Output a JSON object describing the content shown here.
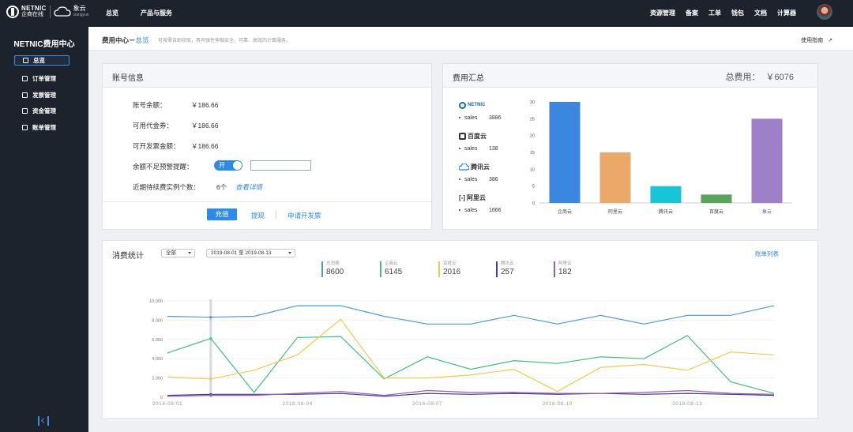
{
  "topbar": {
    "logo_line1": "NETNIC",
    "logo_line2": "企商在线",
    "cloud_text": "象云",
    "cloud_sub": "xiangyun",
    "nav": [
      "总览",
      "产品与服务"
    ],
    "right_nav": [
      "资源管理",
      "备案",
      "工单",
      "钱包",
      "文档",
      "计算器"
    ]
  },
  "sidebar": {
    "title": "NETNIC费用中心",
    "items": [
      {
        "label": "总览",
        "icon": "grid-icon"
      },
      {
        "label": "订单管理",
        "icon": "order-icon"
      },
      {
        "label": "发票管理",
        "icon": "invoice-icon"
      },
      {
        "label": "资金管理",
        "icon": "funds-icon"
      },
      {
        "label": "账单管理",
        "icon": "bill-icon"
      }
    ]
  },
  "header": {
    "breadcrumb_root": "费用中心－",
    "breadcrumb_current": "总览",
    "description": "可按需自助获取，具有弹性伸缩安全、可靠、高效的计算服务。",
    "guide": "使用指南"
  },
  "account": {
    "title": "账号信息",
    "rows": [
      {
        "label": "账号余额：",
        "value": "￥186.66"
      },
      {
        "label": "可用代金券：",
        "value": "￥186.66"
      },
      {
        "label": "可开发票金额：",
        "value": "￥186.66"
      }
    ],
    "alert_label": "余额不足预警提醒：",
    "toggle_label": "开",
    "renew_label": "近期待续费实例个数：",
    "renew_count": "6个",
    "renew_link": "查看详情",
    "recharge": "充值",
    "withdraw": "提现",
    "apply_invoice": "申请开发票"
  },
  "summary": {
    "title": "费用汇总",
    "total_label": "总费用：",
    "total_value": "￥6076",
    "vendors": [
      {
        "name": "NETNIC",
        "sales_label": "sales",
        "sales": "3886"
      },
      {
        "name": "百度云",
        "sales_label": "sales",
        "sales": "138"
      },
      {
        "name": "腾讯云",
        "sales_label": "sales",
        "sales": "386"
      },
      {
        "name": "阿里云",
        "sales_label": "sales",
        "sales": "1666"
      }
    ]
  },
  "stats": {
    "title": "消费统计",
    "filter": "全部",
    "date_range": "2019-08-01 至 2019-08-13",
    "bill_list": "账单列表",
    "legend": [
      {
        "name": "总消费",
        "value": "8600",
        "color": "#4a9bd8"
      },
      {
        "name": "企商云",
        "value": "6145",
        "color": "#3fbf7f"
      },
      {
        "name": "百度云",
        "value": "2016",
        "color": "#f2c94c"
      },
      {
        "name": "腾讯云",
        "value": "257",
        "color": "#3d3d8f"
      },
      {
        "name": "阿里云",
        "value": "182",
        "color": "#9b59b6"
      }
    ]
  },
  "chart_data": [
    {
      "type": "bar",
      "categories": [
        "企商云",
        "阿里云",
        "腾讯云",
        "百度云",
        "象云"
      ],
      "values": [
        30,
        15,
        5,
        2.5,
        25
      ],
      "colors": [
        "#3b86de",
        "#eaa968",
        "#16c6d8",
        "#58a45b",
        "#9e80c8"
      ],
      "yticks": [
        0,
        5,
        10,
        15,
        20,
        25,
        30
      ],
      "ylim": [
        0,
        30
      ],
      "title": "",
      "xlabel": "",
      "ylabel": ""
    },
    {
      "type": "line",
      "x": [
        "2018-08-01",
        "2018-08-02",
        "2018-08-03",
        "2018-08-04",
        "2018-08-05",
        "2018-08-06",
        "2018-08-07",
        "2018-08-08",
        "2018-08-09",
        "2018-08-10",
        "2018-08-11",
        "2018-08-12",
        "2018-08-13",
        "2018-08-14",
        "2018-08-15"
      ],
      "xticks": [
        "2018-08-01",
        "2018-08-04",
        "2018-08-07",
        "2018-08-10",
        "2018-08-13"
      ],
      "yticks": [
        0,
        2000,
        4000,
        6000,
        8000,
        10000
      ],
      "ytick_labels": [
        "0",
        "2,000",
        "4,000",
        "6,000",
        "8,000",
        "10,000"
      ],
      "ylim": [
        0,
        10000
      ],
      "series": [
        {
          "name": "总消费",
          "color": "#4a9bd8",
          "values": [
            8400,
            8300,
            8400,
            9500,
            9500,
            8400,
            7600,
            7600,
            8500,
            7600,
            8500,
            7600,
            8500,
            8500,
            9500
          ]
        },
        {
          "name": "企商云",
          "color": "#3fbf7f",
          "values": [
            4600,
            6100,
            500,
            6200,
            6300,
            1900,
            4200,
            2900,
            3800,
            3500,
            4200,
            4000,
            6400,
            1600,
            400
          ]
        },
        {
          "name": "百度云",
          "color": "#f2c94c",
          "values": [
            2100,
            1900,
            2800,
            4400,
            8100,
            2000,
            2000,
            2300,
            2900,
            600,
            3100,
            3400,
            2800,
            4700,
            4400
          ]
        },
        {
          "name": "腾讯云",
          "color": "#3d3d8f",
          "values": [
            200,
            300,
            300,
            300,
            400,
            100,
            400,
            300,
            400,
            300,
            400,
            300,
            400,
            300,
            200
          ]
        },
        {
          "name": "阿里云",
          "color": "#9b59b6",
          "values": [
            100,
            200,
            200,
            400,
            600,
            200,
            700,
            500,
            500,
            400,
            400,
            500,
            700,
            400,
            300
          ]
        }
      ],
      "grid": true,
      "title": "",
      "xlabel": "",
      "ylabel": ""
    }
  ]
}
